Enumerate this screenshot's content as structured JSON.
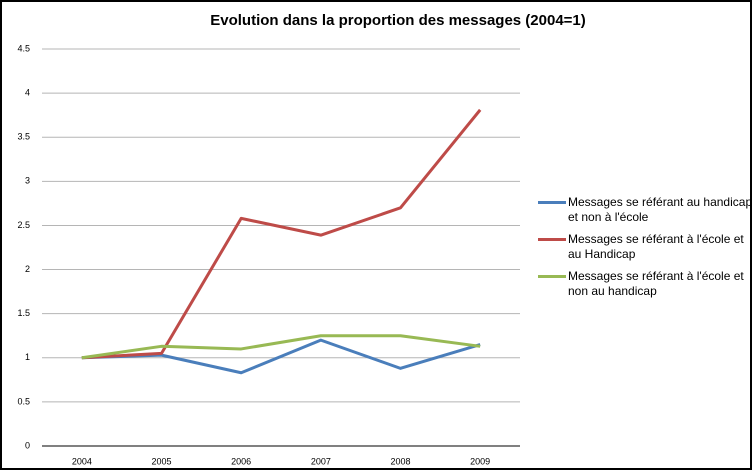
{
  "chart_data": {
    "type": "line",
    "title": "Evolution dans la proportion des messages (2004=1)",
    "categories": [
      "2004",
      "2005",
      "2006",
      "2007",
      "2008",
      "2009"
    ],
    "series": [
      {
        "name": "Messages se référant au handicap et non à l'école",
        "color": "#4a7ebb",
        "values": [
          1,
          1.03,
          0.83,
          1.2,
          0.88,
          1.15
        ]
      },
      {
        "name": "Messages se référant à l'école et au Handicap",
        "color": "#be4b48",
        "values": [
          1,
          1.05,
          2.58,
          2.39,
          2.7,
          3.81
        ]
      },
      {
        "name": "Messages se référant à l'école et non au handicap",
        "color": "#98b954",
        "values": [
          1,
          1.13,
          1.1,
          1.25,
          1.25,
          1.13
        ]
      }
    ],
    "ylim": [
      0,
      4.5
    ],
    "yticks": [
      0,
      0.5,
      1,
      1.5,
      2,
      2.5,
      3,
      3.5,
      4,
      4.5
    ],
    "grid": true,
    "legend": "right"
  }
}
